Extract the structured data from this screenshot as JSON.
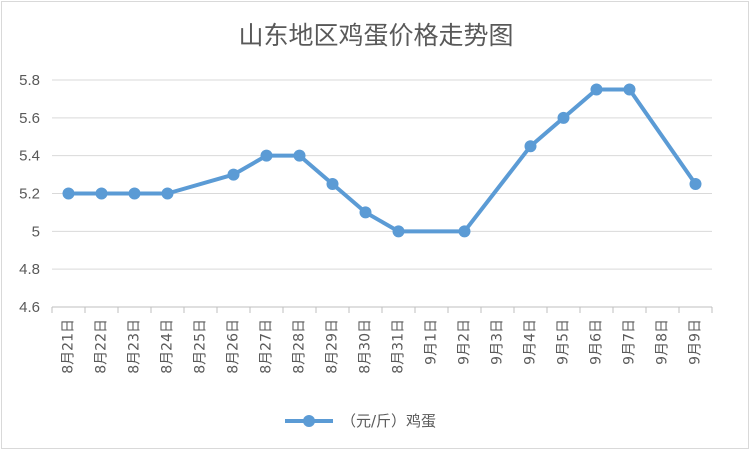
{
  "chart_data": {
    "type": "line",
    "title": "山东地区鸡蛋价格走势图",
    "xlabel": "",
    "ylabel": "",
    "categories": [
      "8月21日",
      "8月22日",
      "8月23日",
      "8月24日",
      "8月25日",
      "8月26日",
      "8月27日",
      "8月28日",
      "8月29日",
      "8月30日",
      "8月31日",
      "9月1日",
      "9月2日",
      "9月3日",
      "9月4日",
      "9月5日",
      "9月6日",
      "9月7日",
      "9月8日",
      "9月9日"
    ],
    "series": [
      {
        "name": "（元/斤）鸡蛋",
        "color": "#5b9bd5",
        "points": [
          {
            "x": "8月21日",
            "y": 5.2
          },
          {
            "x": "8月22日",
            "y": 5.2
          },
          {
            "x": "8月23日",
            "y": 5.2
          },
          {
            "x": "8月24日",
            "y": 5.2
          },
          {
            "x": "8月26日",
            "y": 5.3
          },
          {
            "x": "8月27日",
            "y": 5.4
          },
          {
            "x": "8月28日",
            "y": 5.4
          },
          {
            "x": "8月29日",
            "y": 5.25
          },
          {
            "x": "8月30日",
            "y": 5.1
          },
          {
            "x": "8月31日",
            "y": 5.0
          },
          {
            "x": "9月2日",
            "y": 5.0
          },
          {
            "x": "9月4日",
            "y": 5.45
          },
          {
            "x": "9月5日",
            "y": 5.6
          },
          {
            "x": "9月6日",
            "y": 5.75
          },
          {
            "x": "9月7日",
            "y": 5.75
          },
          {
            "x": "9月9日",
            "y": 5.25
          }
        ]
      }
    ],
    "ylim": [
      4.6,
      5.8
    ],
    "yticks": [
      "4.6",
      "4.8",
      "5",
      "5.2",
      "5.4",
      "5.6",
      "5.8"
    ],
    "grid": true,
    "legend_position": "bottom"
  }
}
